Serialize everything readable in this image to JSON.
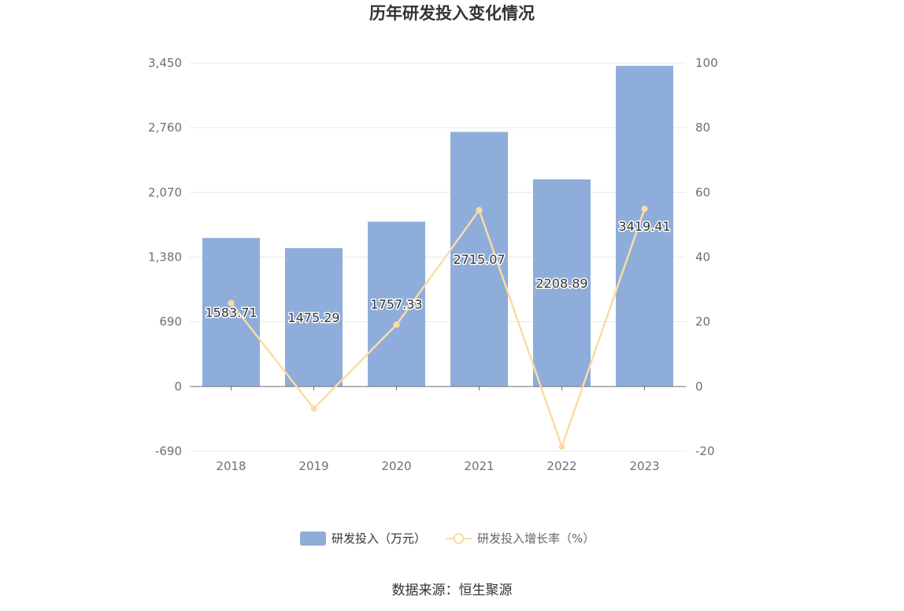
{
  "chart_data": {
    "type": "bar",
    "title": "历年研发投入变化情况",
    "categories": [
      "2018",
      "2019",
      "2020",
      "2021",
      "2022",
      "2023"
    ],
    "series": [
      {
        "name": "研发投入（万元）",
        "type": "bar",
        "axis": "left",
        "values": [
          1583.71,
          1475.29,
          1757.33,
          2715.07,
          2208.89,
          3419.41
        ],
        "data_labels": [
          "1583.71",
          "1475.29",
          "1757.33",
          "2715.07",
          "2208.89",
          "3419.41"
        ]
      },
      {
        "name": "研发投入增长率（%）",
        "type": "line",
        "axis": "right",
        "values": [
          25.8,
          -6.8,
          19.1,
          54.5,
          -18.6,
          54.9
        ]
      }
    ],
    "y_left": {
      "ylim": [
        -690,
        3450
      ],
      "ticks": [
        -690,
        0,
        690,
        1380,
        2070,
        2760,
        3450
      ],
      "tick_labels": [
        "-690",
        "0",
        "690",
        "1,380",
        "2,070",
        "2,760",
        "3,450"
      ]
    },
    "y_right": {
      "ylim": [
        -20,
        100
      ],
      "ticks": [
        -20,
        0,
        20,
        40,
        60,
        80,
        100
      ],
      "tick_labels": [
        "-20",
        "0",
        "20",
        "40",
        "60",
        "80",
        "100"
      ]
    },
    "grid": true,
    "legend": "bottom",
    "colors": {
      "bar": "#8eadda",
      "line": "#fbdba6",
      "grid": "#e6e8ee",
      "axis": "#6e7079"
    }
  },
  "source_text": "数据来源：恒生聚源"
}
